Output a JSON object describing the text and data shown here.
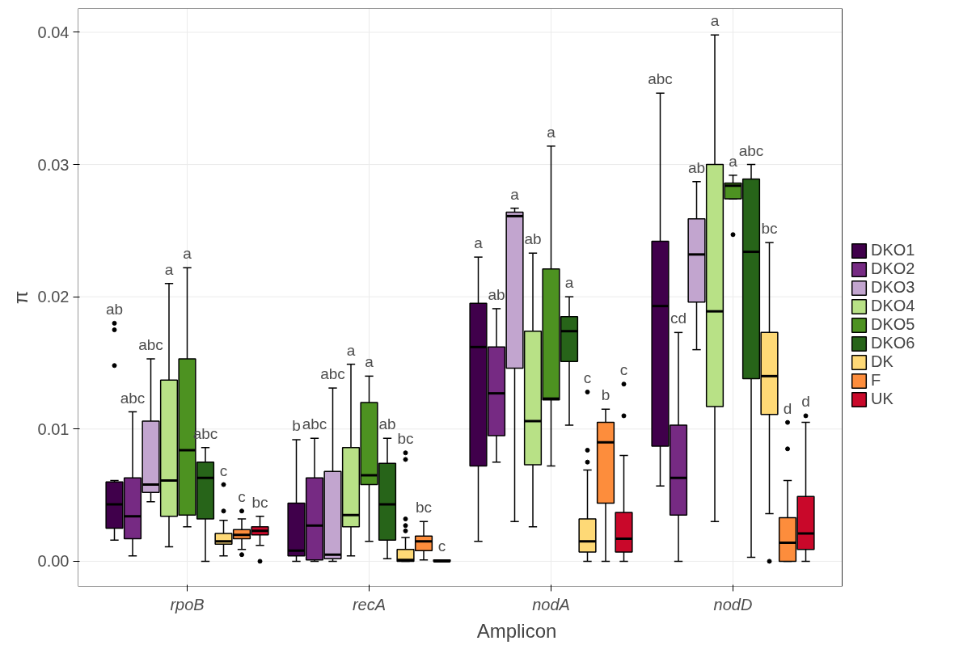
{
  "chart_data": {
    "type": "box",
    "xlabel": "Amplicon",
    "ylabel": "π",
    "categories": [
      "rpoB",
      "recA",
      "nodA",
      "nodD"
    ],
    "ylim": [
      -0.0019,
      0.0418
    ],
    "yticks": [
      {
        "value": 0,
        "label": "0.00"
      },
      {
        "value": 0.01,
        "label": "0.01"
      },
      {
        "value": 0.02,
        "label": "0.02"
      },
      {
        "value": 0.03,
        "label": "0.03"
      },
      {
        "value": 0.04,
        "label": "0.04"
      }
    ],
    "grid": true,
    "legend": "right",
    "series": [
      {
        "name": "DKO1",
        "color": "#40004b",
        "value_labels": [
          "ab",
          "b",
          "a",
          "abc"
        ],
        "boxes": [
          {
            "low": 0.0016,
            "q1": 0.0025,
            "median": 0.0043,
            "q3": 0.006,
            "high": 0.0061,
            "outliers": [
              0.0148,
              0.0175,
              0.018
            ]
          },
          {
            "low": 0.0,
            "q1": 0.0004,
            "median": 0.0008,
            "q3": 0.0044,
            "high": 0.0092
          },
          {
            "low": 0.0015,
            "q1": 0.0072,
            "median": 0.0162,
            "q3": 0.0195,
            "high": 0.023
          },
          {
            "low": 0.0057,
            "q1": 0.0087,
            "median": 0.0193,
            "q3": 0.0242,
            "high": 0.0354
          }
        ]
      },
      {
        "name": "DKO2",
        "color": "#762a83",
        "value_labels": [
          "abc",
          "abc",
          "ab",
          "cd"
        ],
        "boxes": [
          {
            "low": 0.0004,
            "q1": 0.0017,
            "median": 0.0034,
            "q3": 0.0063,
            "high": 0.0113
          },
          {
            "low": 0.0,
            "q1": 0.0001,
            "median": 0.0027,
            "q3": 0.0063,
            "high": 0.0093
          },
          {
            "low": 0.0075,
            "q1": 0.0095,
            "median": 0.0127,
            "q3": 0.0162,
            "high": 0.0191
          },
          {
            "low": 0.0,
            "q1": 0.0035,
            "median": 0.0063,
            "q3": 0.0103,
            "high": 0.0173
          }
        ]
      },
      {
        "name": "DKO3",
        "color": "#c2a5cf",
        "value_labels": [
          "abc",
          "abc",
          "a",
          "ab"
        ],
        "boxes": [
          {
            "low": 0.0045,
            "q1": 0.0052,
            "median": 0.0058,
            "q3": 0.0106,
            "high": 0.0153
          },
          {
            "low": 0.0,
            "q1": 0.0002,
            "median": 0.0005,
            "q3": 0.0068,
            "high": 0.0131
          },
          {
            "low": 0.003,
            "q1": 0.0146,
            "median": 0.0261,
            "q3": 0.0264,
            "high": 0.0267
          },
          {
            "low": 0.016,
            "q1": 0.0196,
            "median": 0.0232,
            "q3": 0.0259,
            "high": 0.0287
          }
        ]
      },
      {
        "name": "DKO4",
        "color": "#b8e186",
        "value_labels": [
          "a",
          "a",
          "ab",
          "a"
        ],
        "boxes": [
          {
            "low": 0.0011,
            "q1": 0.0034,
            "median": 0.0061,
            "q3": 0.0137,
            "high": 0.021
          },
          {
            "low": 0.0004,
            "q1": 0.0026,
            "median": 0.0035,
            "q3": 0.0086,
            "high": 0.0149
          },
          {
            "low": 0.0026,
            "q1": 0.0073,
            "median": 0.0106,
            "q3": 0.0174,
            "high": 0.0233
          },
          {
            "low": 0.003,
            "q1": 0.0117,
            "median": 0.0189,
            "q3": 0.03,
            "high": 0.0398
          }
        ]
      },
      {
        "name": "DKO5",
        "color": "#4d9221",
        "value_labels": [
          "a",
          "a",
          "a",
          "a"
        ],
        "boxes": [
          {
            "low": 0.0026,
            "q1": 0.0035,
            "median": 0.0084,
            "q3": 0.0153,
            "high": 0.0222
          },
          {
            "low": 0.0015,
            "q1": 0.0058,
            "median": 0.0065,
            "q3": 0.012,
            "high": 0.014
          },
          {
            "low": 0.0072,
            "q1": 0.0122,
            "median": 0.0123,
            "q3": 0.0221,
            "high": 0.0314
          },
          {
            "low": 0.0274,
            "q1": 0.0274,
            "median": 0.0284,
            "q3": 0.0286,
            "high": 0.0292,
            "outliers": [
              0.0247
            ]
          }
        ]
      },
      {
        "name": "DKO6",
        "color": "#276419",
        "value_labels": [
          "abc",
          "ab",
          "a",
          "abc"
        ],
        "boxes": [
          {
            "low": 0.0,
            "q1": 0.0032,
            "median": 0.0063,
            "q3": 0.0075,
            "high": 0.0086
          },
          {
            "low": 0.0002,
            "q1": 0.0016,
            "median": 0.0043,
            "q3": 0.0074,
            "high": 0.0093
          },
          {
            "low": 0.0103,
            "q1": 0.0151,
            "median": 0.0174,
            "q3": 0.0185,
            "high": 0.02
          },
          {
            "low": 0.0003,
            "q1": 0.0138,
            "median": 0.0234,
            "q3": 0.0289,
            "high": 0.03
          }
        ]
      },
      {
        "name": "DK",
        "color": "#fed976",
        "value_labels": [
          "c",
          "bc",
          "c",
          "bc"
        ],
        "boxes": [
          {
            "low": 0.0004,
            "q1": 0.0013,
            "median": 0.0015,
            "q3": 0.0021,
            "high": 0.0031,
            "outliers": [
              0.0058,
              0.0038
            ]
          },
          {
            "low": 0.0,
            "q1": 0.0,
            "median": 0.0001,
            "q3": 0.0009,
            "high": 0.0018,
            "outliers": [
              0.0082,
              0.0077,
              0.0032,
              0.0027,
              0.0023
            ]
          },
          {
            "low": 0.0,
            "q1": 0.0007,
            "median": 0.0015,
            "q3": 0.0032,
            "high": 0.0069,
            "outliers": [
              0.0128,
              0.0084,
              0.0075
            ]
          },
          {
            "low": 0.0036,
            "q1": 0.0111,
            "median": 0.014,
            "q3": 0.0173,
            "high": 0.0241,
            "outliers": [
              0.0
            ]
          }
        ]
      },
      {
        "name": "F",
        "color": "#fd8d3c",
        "value_labels": [
          "c",
          "bc",
          "b",
          "d"
        ],
        "boxes": [
          {
            "low": 0.0009,
            "q1": 0.0017,
            "median": 0.002,
            "q3": 0.0024,
            "high": 0.0032,
            "outliers": [
              0.0038,
              0.0005
            ]
          },
          {
            "low": 0.0001,
            "q1": 0.0008,
            "median": 0.0015,
            "q3": 0.0019,
            "high": 0.003
          },
          {
            "low": 0.0,
            "q1": 0.0044,
            "median": 0.009,
            "q3": 0.0105,
            "high": 0.0115
          },
          {
            "low": 0.0,
            "q1": 0.0,
            "median": 0.0014,
            "q3": 0.0033,
            "high": 0.0061,
            "outliers": [
              0.0105,
              0.0085
            ]
          }
        ]
      },
      {
        "name": "UK",
        "color": "#c9082a",
        "value_labels": [
          "bc",
          "c",
          "c",
          "d"
        ],
        "boxes": [
          {
            "low": 0.0012,
            "q1": 0.002,
            "median": 0.0023,
            "q3": 0.0026,
            "high": 0.0034,
            "outliers": [
              0.0
            ]
          },
          {
            "low": 0.0,
            "q1": 0.0,
            "median": 0.0,
            "q3": 0.0001,
            "high": 0.0001
          },
          {
            "low": 0.0,
            "q1": 0.0007,
            "median": 0.0017,
            "q3": 0.0037,
            "high": 0.008,
            "outliers": [
              0.0134,
              0.011
            ]
          },
          {
            "low": 0.0,
            "q1": 0.0009,
            "median": 0.0021,
            "q3": 0.0049,
            "high": 0.0105,
            "outliers": [
              0.011
            ]
          }
        ]
      }
    ]
  }
}
